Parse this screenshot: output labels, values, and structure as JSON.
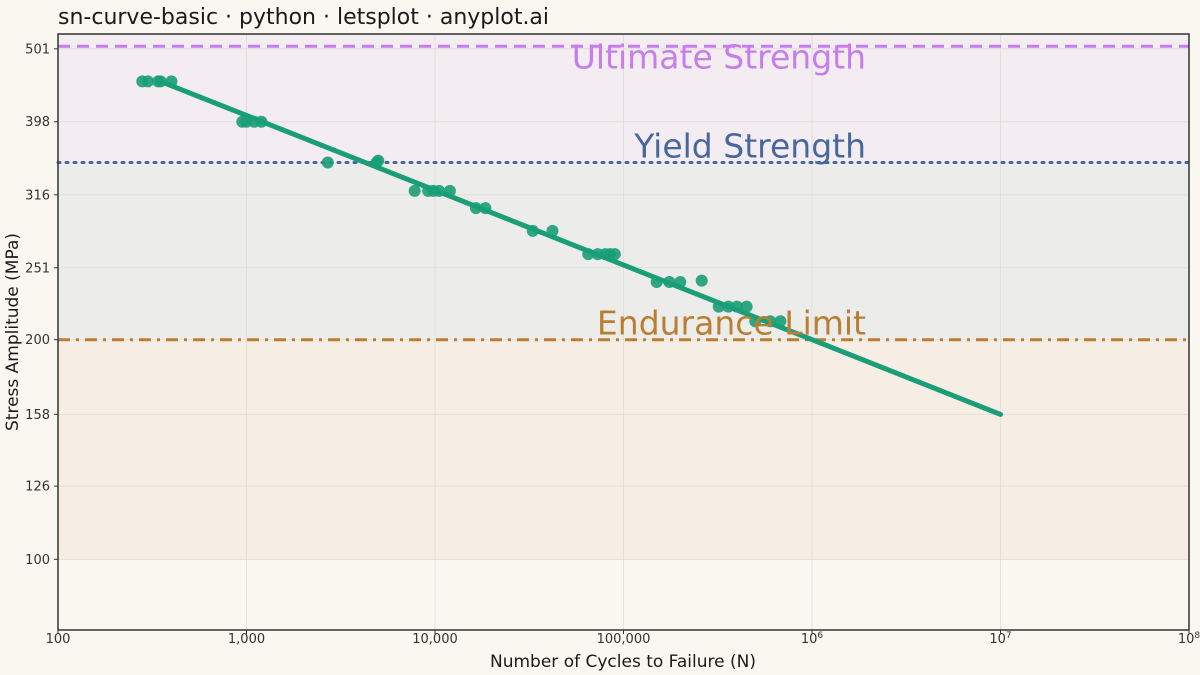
{
  "chart_data": {
    "type": "scatter",
    "title": "sn-curve-basic · python · letsplot · anyplot.ai",
    "xlabel": "Number of Cycles to Failure (N)",
    "ylabel": "Stress Amplitude (MPa)",
    "x_scale": "log10",
    "y_scale": "log10",
    "xlim": [
      100,
      100000000
    ],
    "ylim": [
      80,
      525
    ],
    "x_ticks": [
      {
        "value": 100,
        "label": "100",
        "sup": ""
      },
      {
        "value": 1000,
        "label": "1,000",
        "sup": ""
      },
      {
        "value": 10000,
        "label": "10,000",
        "sup": ""
      },
      {
        "value": 100000,
        "label": "100,000",
        "sup": ""
      },
      {
        "value": 1000000,
        "label": "10",
        "sup": "6"
      },
      {
        "value": 10000000,
        "label": "10",
        "sup": "7"
      },
      {
        "value": 100000000,
        "label": "10",
        "sup": "8"
      }
    ],
    "y_ticks": [
      {
        "value": 100,
        "label": "100"
      },
      {
        "value": 126,
        "label": "126"
      },
      {
        "value": 158,
        "label": "158"
      },
      {
        "value": 200,
        "label": "200"
      },
      {
        "value": 251,
        "label": "251"
      },
      {
        "value": 316,
        "label": "316"
      },
      {
        "value": 398,
        "label": "398"
      },
      {
        "value": 501,
        "label": "501"
      }
    ],
    "grid": true,
    "regions": [
      {
        "from": 350,
        "to": 525,
        "color": "#F3ECF1"
      },
      {
        "from": 200,
        "to": 350,
        "color": "#ECECEA"
      },
      {
        "from": 100,
        "to": 200,
        "color": "#F6EEE4"
      }
    ],
    "reference_lines": [
      {
        "label": "Ultimate Strength",
        "value": 505,
        "color": "#C77DEB",
        "dash": "dashed"
      },
      {
        "label": "Yield Strength",
        "value": 350,
        "color": "#47689E",
        "dash": "dotted"
      },
      {
        "label": "Endurance Limit",
        "value": 200,
        "color": "#BA7E33",
        "dash": "dashdot"
      }
    ],
    "fit_line": {
      "color": "#1A9E77",
      "points": [
        [
          350,
          452
        ],
        [
          10000000,
          158
        ]
      ]
    },
    "points_color": "#1A9E77",
    "points": [
      [
        280,
        452
      ],
      [
        300,
        452
      ],
      [
        340,
        452
      ],
      [
        350,
        452
      ],
      [
        400,
        452
      ],
      [
        950,
        398
      ],
      [
        1000,
        398
      ],
      [
        1100,
        398
      ],
      [
        1200,
        398
      ],
      [
        2700,
        350
      ],
      [
        4900,
        350
      ],
      [
        5000,
        352
      ],
      [
        7800,
        320
      ],
      [
        9200,
        320
      ],
      [
        9800,
        320
      ],
      [
        10500,
        320
      ],
      [
        12000,
        320
      ],
      [
        16500,
        303
      ],
      [
        18500,
        303
      ],
      [
        33000,
        282
      ],
      [
        42000,
        282
      ],
      [
        65000,
        262
      ],
      [
        73000,
        262
      ],
      [
        80000,
        262
      ],
      [
        85000,
        262
      ],
      [
        90000,
        262
      ],
      [
        150000,
        240
      ],
      [
        175000,
        240
      ],
      [
        200000,
        240
      ],
      [
        260000,
        241
      ],
      [
        320000,
        222
      ],
      [
        360000,
        222
      ],
      [
        400000,
        222
      ],
      [
        450000,
        222
      ],
      [
        500000,
        212
      ],
      [
        600000,
        212
      ],
      [
        680000,
        212
      ]
    ]
  }
}
